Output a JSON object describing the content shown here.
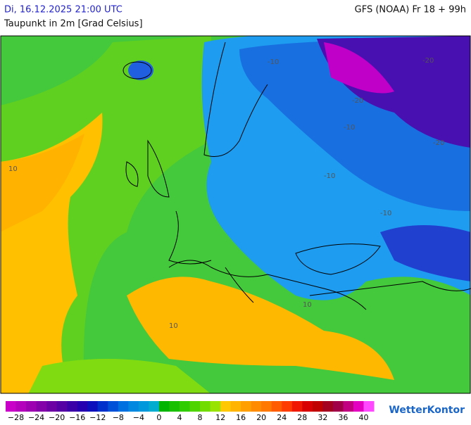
{
  "header": {
    "left_title": "Di, 16.12.2025 21:00 UTC",
    "right_title": "GFS (NOAA) Fr 18 + 99h",
    "subtitle": "Taupunkt in 2m [Grad Celsius]"
  },
  "map": {
    "contour_labels": [
      "-10",
      "-20",
      "-20",
      "-20",
      "-10",
      "-10",
      "10",
      "10",
      "10",
      "-10"
    ]
  },
  "colorbar": {
    "colors": [
      "#c800c8",
      "#b400bc",
      "#9c00b0",
      "#8400a8",
      "#6c00a4",
      "#5400a4",
      "#3c00a8",
      "#2400b0",
      "#0c10bc",
      "#0030cc",
      "#0050d8",
      "#0070e0",
      "#0088e0",
      "#0098dc",
      "#00acd0",
      "#00b400",
      "#18c000",
      "#30cc00",
      "#50d400",
      "#70dc00",
      "#98e400",
      "#ffc800",
      "#ffb400",
      "#ffa000",
      "#ff8c00",
      "#ff7800",
      "#ff5c00",
      "#ff3c00",
      "#f01800",
      "#d80000",
      "#c00000",
      "#a40020",
      "#a00048",
      "#c00080",
      "#e400c0",
      "#ff48ff"
    ],
    "labels": [
      "−28",
      "−24",
      "−20",
      "−16",
      "−12",
      "−8",
      "−4",
      "0",
      "4",
      "8",
      "12",
      "16",
      "20",
      "24",
      "28",
      "32",
      "36",
      "40"
    ]
  },
  "logo": "WetterKontor"
}
